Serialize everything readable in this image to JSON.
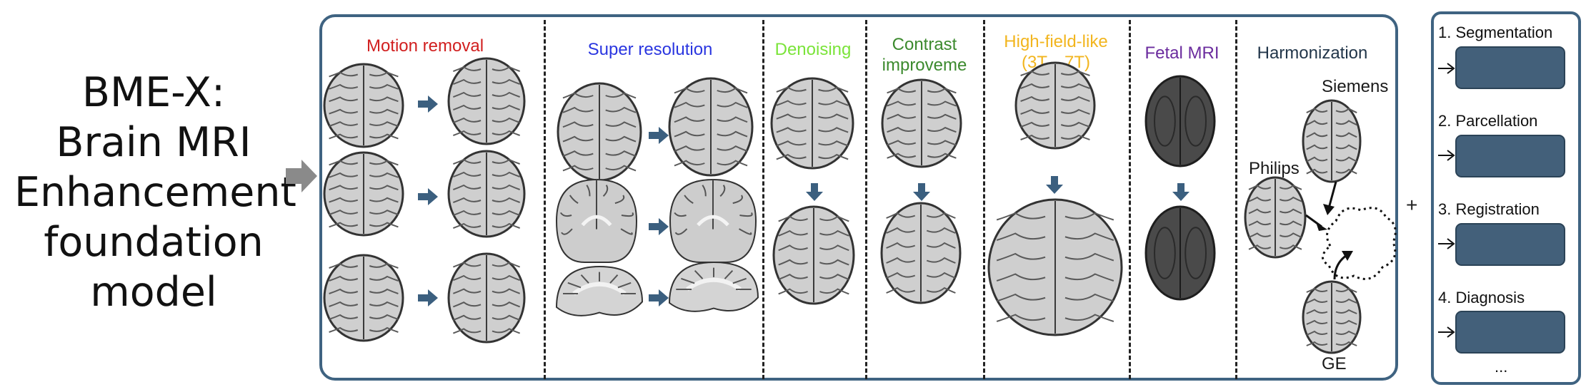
{
  "title": [
    "BME-X:",
    "Brain MRI",
    "Enhancement",
    "foundation",
    "model"
  ],
  "columns": [
    {
      "label": "Motion removal",
      "color": "#d11f1f"
    },
    {
      "label": "Super resolution",
      "color": "#2a36e0"
    },
    {
      "label": "Denoising",
      "color": "#7be43a"
    },
    {
      "label_lines": [
        "Contrast",
        "improveme"
      ],
      "color": "#3c8a2e"
    },
    {
      "label_lines": [
        "High-field-like",
        "(3T→7T)"
      ],
      "color": "#f2b51e"
    },
    {
      "label": "Fetal MRI",
      "color": "#6b2c9e"
    },
    {
      "label": "Harmonization",
      "color": "#22364a"
    }
  ],
  "vendors": {
    "siemens": "Siemens",
    "philips": "Philips",
    "ge": "GE"
  },
  "plus": "+",
  "tasks": [
    "1. Segmentation",
    "2. Parcellation",
    "3. Registration",
    "4. Diagnosis"
  ],
  "ellipsis": "...",
  "colors": {
    "frame": "#3f6381",
    "arrow": "#3b5f7f",
    "task_box": "#43607a",
    "input_arrow": "#8a8a8a"
  }
}
